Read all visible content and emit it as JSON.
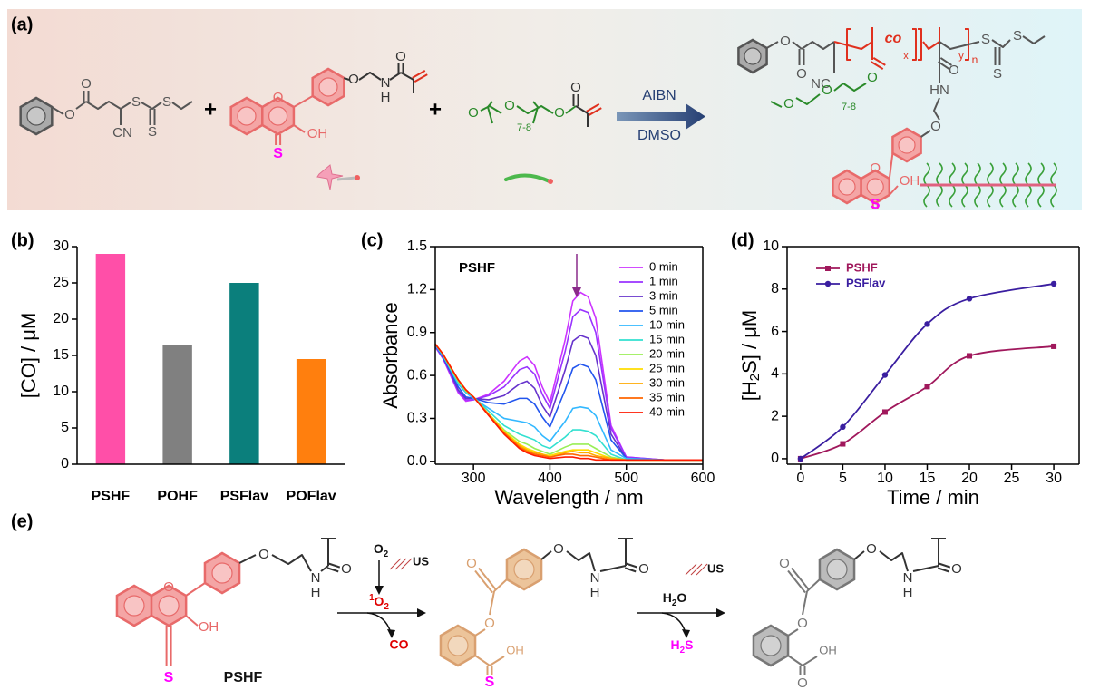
{
  "panel_labels": [
    "(a)",
    "(b)",
    "(c)",
    "(d)",
    "(e)"
  ],
  "scheme_a": {
    "labels": [
      "O",
      "O",
      "S",
      "S",
      "S",
      "CN",
      "+",
      "O",
      "OH",
      "S",
      "O",
      "N",
      "H",
      "O",
      "+",
      "O",
      "O",
      "7-8",
      "O",
      "O",
      "AIBN",
      "DMSO",
      "O",
      "O",
      "NC",
      "co",
      "x",
      "y",
      "n",
      "S",
      "S",
      "S",
      "O",
      "O",
      "HN",
      "O",
      "7-8",
      "O",
      "O",
      "O",
      "OH",
      "S"
    ]
  },
  "scheme_e": {
    "labels": [
      "O",
      "OH",
      "S",
      "O",
      "N",
      "H",
      "O",
      "PSHF",
      "US",
      "CO",
      "O",
      "O",
      "OH",
      "S",
      "O",
      "N",
      "H",
      "O",
      "US",
      "O",
      "O",
      "OH",
      "O",
      "O",
      "N",
      "H",
      "O"
    ],
    "o2": [
      "O",
      "2"
    ],
    "singlet_o2": [
      "1",
      "O",
      "2"
    ],
    "h2o": [
      "H",
      "2",
      "O"
    ],
    "h2s": [
      "H",
      "2",
      "S"
    ]
  },
  "chart_data": [
    {
      "type": "bar",
      "ylabel": "[CO] / μM",
      "categories": [
        "PSHF",
        "POHF",
        "PSFlav",
        "POFlav"
      ],
      "values": [
        29,
        16.5,
        25,
        14.5
      ],
      "colors": [
        "#ff4fa8",
        "#808080",
        "#0b7f7c",
        "#ff7f0e"
      ],
      "ylim": [
        0,
        30
      ],
      "yticks": [
        0,
        5,
        10,
        15,
        20,
        25,
        30
      ]
    },
    {
      "type": "line",
      "annotation": "PSHF",
      "xlabel": "Wavelength / nm",
      "ylabel": "Absorbance",
      "box": true,
      "legend": "upper right",
      "x": [
        250,
        260,
        270,
        280,
        290,
        300,
        320,
        340,
        360,
        370,
        380,
        390,
        400,
        420,
        430,
        440,
        450,
        460,
        480,
        500,
        550,
        600
      ],
      "series": [
        {
          "name": "0 min",
          "color": "#cc33ff",
          "values": [
            0.8,
            0.72,
            0.6,
            0.48,
            0.42,
            0.43,
            0.47,
            0.56,
            0.7,
            0.73,
            0.67,
            0.52,
            0.41,
            0.85,
            1.12,
            1.18,
            1.15,
            1.0,
            0.25,
            0.03,
            0.01,
            0.01
          ]
        },
        {
          "name": "1 min",
          "color": "#9933ff",
          "values": [
            0.8,
            0.72,
            0.61,
            0.49,
            0.43,
            0.43,
            0.46,
            0.52,
            0.64,
            0.66,
            0.61,
            0.47,
            0.37,
            0.77,
            1.01,
            1.06,
            1.04,
            0.9,
            0.23,
            0.03,
            0.01,
            0.01
          ]
        },
        {
          "name": "3 min",
          "color": "#6633cc",
          "values": [
            0.81,
            0.73,
            0.62,
            0.5,
            0.44,
            0.44,
            0.43,
            0.46,
            0.54,
            0.56,
            0.51,
            0.39,
            0.31,
            0.64,
            0.84,
            0.88,
            0.86,
            0.74,
            0.19,
            0.02,
            0.01,
            0.01
          ]
        },
        {
          "name": "5 min",
          "color": "#2255ee",
          "values": [
            0.81,
            0.73,
            0.63,
            0.52,
            0.45,
            0.44,
            0.41,
            0.4,
            0.44,
            0.44,
            0.4,
            0.31,
            0.24,
            0.5,
            0.65,
            0.68,
            0.66,
            0.57,
            0.15,
            0.02,
            0.01,
            0.01
          ]
        },
        {
          "name": "10 min",
          "color": "#33b8ff",
          "values": [
            0.81,
            0.74,
            0.64,
            0.54,
            0.48,
            0.44,
            0.37,
            0.3,
            0.28,
            0.27,
            0.24,
            0.18,
            0.14,
            0.28,
            0.37,
            0.38,
            0.37,
            0.32,
            0.08,
            0.02,
            0.01,
            0.01
          ]
        },
        {
          "name": "15 min",
          "color": "#33e0d0",
          "values": [
            0.82,
            0.74,
            0.65,
            0.55,
            0.49,
            0.45,
            0.35,
            0.25,
            0.19,
            0.17,
            0.15,
            0.11,
            0.09,
            0.17,
            0.22,
            0.22,
            0.21,
            0.18,
            0.05,
            0.01,
            0.01,
            0.01
          ]
        },
        {
          "name": "20 min",
          "color": "#99ee55",
          "values": [
            0.82,
            0.75,
            0.65,
            0.56,
            0.49,
            0.45,
            0.33,
            0.22,
            0.14,
            0.12,
            0.09,
            0.07,
            0.05,
            0.1,
            0.12,
            0.12,
            0.12,
            0.09,
            0.03,
            0.01,
            0.01,
            0.01
          ]
        },
        {
          "name": "25 min",
          "color": "#ffdd00",
          "values": [
            0.82,
            0.75,
            0.66,
            0.57,
            0.5,
            0.45,
            0.33,
            0.21,
            0.12,
            0.09,
            0.07,
            0.05,
            0.04,
            0.07,
            0.08,
            0.08,
            0.08,
            0.06,
            0.02,
            0.01,
            0.01,
            0.01
          ]
        },
        {
          "name": "30 min",
          "color": "#ffaa00",
          "values": [
            0.82,
            0.75,
            0.66,
            0.57,
            0.5,
            0.45,
            0.33,
            0.2,
            0.11,
            0.08,
            0.06,
            0.05,
            0.03,
            0.06,
            0.07,
            0.06,
            0.06,
            0.04,
            0.02,
            0.01,
            0.01,
            0.01
          ]
        },
        {
          "name": "35 min",
          "color": "#ff6600",
          "values": [
            0.82,
            0.75,
            0.66,
            0.57,
            0.5,
            0.45,
            0.32,
            0.2,
            0.1,
            0.07,
            0.05,
            0.04,
            0.03,
            0.05,
            0.05,
            0.04,
            0.04,
            0.03,
            0.01,
            0.01,
            0.01,
            0.01
          ]
        },
        {
          "name": "40 min",
          "color": "#ff1a00",
          "values": [
            0.82,
            0.75,
            0.66,
            0.57,
            0.5,
            0.45,
            0.32,
            0.19,
            0.09,
            0.06,
            0.04,
            0.03,
            0.02,
            0.03,
            0.03,
            0.02,
            0.02,
            0.01,
            0.01,
            0.01,
            0.01,
            0.01
          ]
        }
      ],
      "xlim": [
        250,
        600
      ],
      "xticks": [
        300,
        400,
        500,
        600
      ],
      "ylim": [
        -0.02,
        1.5
      ],
      "yticks": [
        {
          "value": 0,
          "label": "0.0"
        },
        0.3,
        0.6,
        0.9,
        1.2,
        1.5
      ]
    },
    {
      "type": "line",
      "markers": true,
      "smooth": true,
      "box": true,
      "legend": "upper left",
      "xlabel": "Time / min",
      "ylabel_parts": [
        "[H",
        "2",
        "S] / μM"
      ],
      "x": [
        0,
        5,
        10,
        15,
        20,
        30
      ],
      "series": [
        {
          "name": "PSHF",
          "color": "#a0185c",
          "marker": "square",
          "values": [
            0,
            0.7,
            2.2,
            3.4,
            4.85,
            5.3
          ]
        },
        {
          "name": "PSFlav",
          "color": "#3a1ea0",
          "marker": "circle",
          "values": [
            0,
            1.5,
            3.95,
            6.35,
            7.55,
            8.25
          ]
        }
      ],
      "xlim": [
        -1.6,
        33
      ],
      "xticks": [
        0,
        5,
        10,
        15,
        20,
        25,
        30
      ],
      "ylim": [
        -0.26,
        10
      ],
      "yticks": [
        0,
        2,
        4,
        6,
        8,
        10
      ]
    }
  ]
}
